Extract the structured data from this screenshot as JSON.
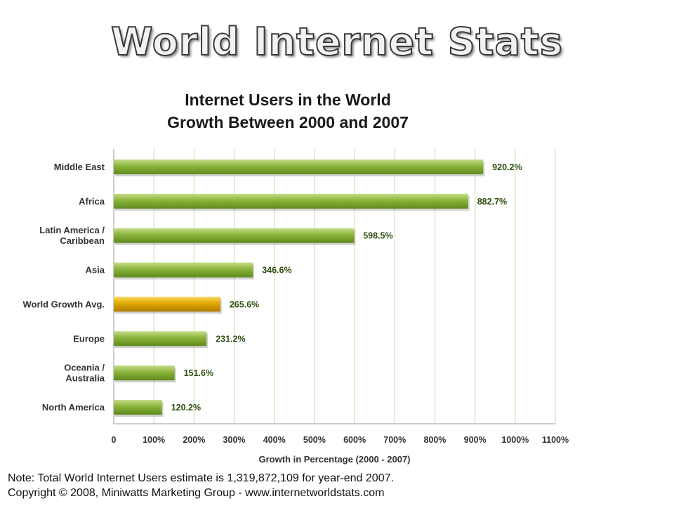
{
  "slide": {
    "title": "World Internet Stats"
  },
  "chart_data": {
    "type": "bar",
    "orientation": "horizontal",
    "title": "Internet Users in the World",
    "subtitle": "Growth Between 2000 and 2007",
    "xlabel": "Growth in Percentage (2000 - 2007)",
    "ylabel": "",
    "xlim": [
      0,
      1100
    ],
    "xticks": [
      "0",
      "100%",
      "200%",
      "300%",
      "400%",
      "500%",
      "600%",
      "700%",
      "800%",
      "900%",
      "1000%",
      "1100%"
    ],
    "grid": true,
    "categories": [
      [
        "Middle East"
      ],
      [
        "Africa"
      ],
      [
        "Latin America /",
        "Caribbean"
      ],
      [
        "Asia"
      ],
      [
        "World Growth Avg."
      ],
      [
        "Europe"
      ],
      [
        "Oceania  /",
        "Australia"
      ],
      [
        "North America"
      ]
    ],
    "values": [
      920.2,
      882.7,
      598.5,
      346.6,
      265.6,
      231.2,
      151.6,
      120.2
    ],
    "data_labels": [
      "920.2%",
      "882.7%",
      "598.5%",
      "346.6%",
      "265.6%",
      "231.2%",
      "151.6%",
      "120.2%"
    ],
    "highlight_index": 4,
    "colors": {
      "bar": "#8ab33a",
      "bar_light": "#c4dd88",
      "bar_dark": "#5f8a1e",
      "highlight": "#e0a800",
      "highlight_light": "#f7d65a",
      "highlight_dark": "#b07d00",
      "label": "#2e4d10",
      "grid": "#d2e3b4"
    }
  },
  "footnote": {
    "line1": "Note: Total World Internet Users estimate is 1,319,872,109 for year-end 2007.",
    "line2": "Copyright © 2008, Miniwatts Marketing Group - www.internetworldstats.com"
  }
}
